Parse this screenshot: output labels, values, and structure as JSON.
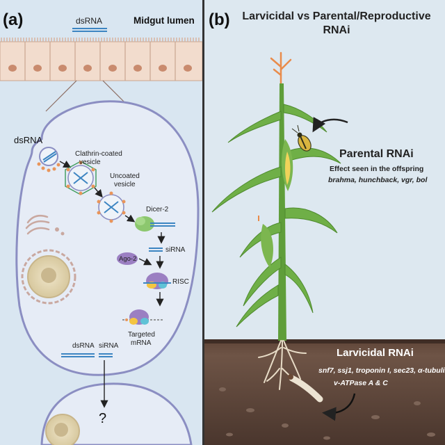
{
  "panel_a": {
    "label": "(a)",
    "lumen_label": "Midgut lumen",
    "dsrna_top": "dsRNA",
    "dsrna_left": "dsRNA",
    "clathrin_label": [
      "Clathrin-coated",
      "vesicle"
    ],
    "uncoated_label": [
      "Uncoated",
      "vesicle"
    ],
    "dicer_label": "Dicer-2",
    "sirna_label": "siRNA",
    "ago_label": "Ago-2",
    "risc_label": "RISC",
    "targeted_label": [
      "Targeted",
      "mRNA"
    ],
    "dsrna_bottom": "dsRNA",
    "sirna_bottom": "siRNA",
    "question": "?"
  },
  "panel_b": {
    "label": "(b)",
    "title": [
      "Larvicidal vs Parental/Reproductive",
      "RNAi"
    ],
    "parental_title": "Parental RNAi",
    "parental_desc": "Effect seen in the offspring",
    "parental_genes": "brahma, hunchback, vgr, bol",
    "larvicidal_title": "Larvicidal RNAi",
    "larvicidal_genes": [
      "snf7, ssj1, troponin I, sec23, α-tubulin,",
      "v-ATPase A & C"
    ]
  },
  "colors": {
    "panel_a_bg": "#d9e6f1",
    "panel_b_sky": "#dde8f0",
    "cell_border": "#8b8ec2",
    "soil_dark": "#5a4338",
    "stalk_green": "#5f9e3a",
    "tassel": "#e98b4a"
  }
}
